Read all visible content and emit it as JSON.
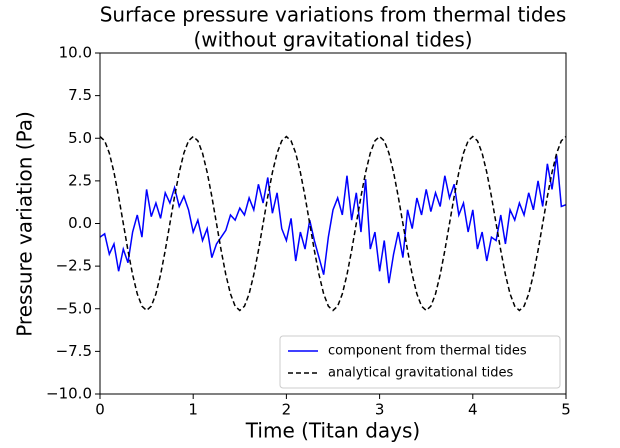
{
  "chart_data": {
    "type": "line",
    "title": [
      "Surface pressure variations from thermal tides",
      "(without gravitational tides)"
    ],
    "xlabel": "Time (Titan days)",
    "ylabel": "Pressure variation (Pa)",
    "xlim": [
      0,
      5
    ],
    "ylim": [
      -10,
      10
    ],
    "xticks": [
      0,
      1,
      2,
      3,
      4,
      5
    ],
    "yticks": [
      {
        "value": -10,
        "label": "−10.0"
      },
      {
        "value": -7.5,
        "label": "−7.5"
      },
      {
        "value": -5,
        "label": "−5.0"
      },
      {
        "value": -2.5,
        "label": "−2.5"
      },
      {
        "value": 0,
        "label": "0.0"
      },
      {
        "value": 2.5,
        "label": "2.5"
      },
      {
        "value": 5,
        "label": "5.0"
      },
      {
        "value": 7.5,
        "label": "7.5"
      },
      {
        "value": 10,
        "label": "10.0"
      }
    ],
    "grid": false,
    "legend": "lower right",
    "x": [
      0,
      0.05,
      0.1,
      0.15,
      0.2,
      0.25,
      0.3,
      0.35,
      0.4,
      0.45,
      0.5,
      0.55,
      0.6,
      0.65,
      0.7,
      0.75,
      0.8,
      0.85,
      0.9,
      0.95,
      1,
      1.05,
      1.1,
      1.15,
      1.2,
      1.25,
      1.3,
      1.35,
      1.4,
      1.45,
      1.5,
      1.55,
      1.6,
      1.65,
      1.7,
      1.75,
      1.8,
      1.85,
      1.9,
      1.95,
      2,
      2.05,
      2.1,
      2.15,
      2.2,
      2.25,
      2.3,
      2.35,
      2.4,
      2.45,
      2.5,
      2.55,
      2.6,
      2.65,
      2.7,
      2.75,
      2.8,
      2.85,
      2.9,
      2.95,
      3,
      3.05,
      3.1,
      3.15,
      3.2,
      3.25,
      3.3,
      3.35,
      3.4,
      3.45,
      3.5,
      3.55,
      3.6,
      3.65,
      3.7,
      3.75,
      3.8,
      3.85,
      3.9,
      3.95,
      4,
      4.05,
      4.1,
      4.15,
      4.2,
      4.25,
      4.3,
      4.35,
      4.4,
      4.45,
      4.5,
      4.55,
      4.6,
      4.65,
      4.7,
      4.75,
      4.8,
      4.85,
      4.9,
      4.95,
      5
    ],
    "series": [
      {
        "name": "component from thermal tides",
        "color": "#0000ff",
        "linestyle": "solid",
        "values": [
          -0.8,
          -0.6,
          -1.8,
          -1.2,
          -2.8,
          -1.5,
          -2.3,
          -0.5,
          0.5,
          -0.8,
          2.0,
          0.4,
          1.2,
          0.3,
          1.8,
          1.2,
          2.1,
          1.0,
          1.6,
          0.8,
          -0.5,
          0.2,
          -1.0,
          -0.3,
          -2.0,
          -1.2,
          -0.8,
          -0.4,
          0.5,
          0.2,
          0.9,
          0.5,
          1.5,
          0.8,
          2.3,
          1.2,
          2.7,
          0.6,
          1.8,
          -0.3,
          -1.0,
          0.3,
          -2.2,
          -0.5,
          -1.5,
          0.2,
          -1.0,
          -2.0,
          -3.0,
          -0.8,
          0.8,
          1.5,
          0.5,
          2.8,
          0.2,
          1.8,
          -0.5,
          2.6,
          -1.5,
          -0.5,
          -2.8,
          -1.0,
          -3.5,
          -1.8,
          -0.5,
          -2.0,
          0.8,
          -0.3,
          1.5,
          0.5,
          2.0,
          0.7,
          1.8,
          1.0,
          2.8,
          1.5,
          2.3,
          0.5,
          1.2,
          -0.5,
          0.8,
          -1.5,
          -0.5,
          -2.2,
          -0.8,
          -1.0,
          0.5,
          -1.2,
          0.8,
          0.2,
          1.2,
          0.5,
          1.8,
          0.8,
          2.5,
          1.0,
          3.5,
          2.0,
          4.0,
          1.0,
          1.1
        ]
      },
      {
        "name": "analytical gravitational tides",
        "color": "#000000",
        "linestyle": "dashed",
        "values": [
          5.1,
          4.85,
          4.13,
          3.0,
          1.58,
          0,
          -1.58,
          -3.0,
          -4.13,
          -4.85,
          -5.1,
          -4.85,
          -4.13,
          -3.0,
          -1.58,
          0,
          1.58,
          3.0,
          4.13,
          4.85,
          5.1,
          4.85,
          4.13,
          3.0,
          1.58,
          0,
          -1.58,
          -3.0,
          -4.13,
          -4.85,
          -5.1,
          -4.85,
          -4.13,
          -3.0,
          -1.58,
          0,
          1.58,
          3.0,
          4.13,
          4.85,
          5.1,
          4.85,
          4.13,
          3.0,
          1.58,
          0,
          -1.58,
          -3.0,
          -4.13,
          -4.85,
          -5.1,
          -4.85,
          -4.13,
          -3.0,
          -1.58,
          0,
          1.58,
          3.0,
          4.13,
          4.85,
          5.1,
          4.85,
          4.13,
          3.0,
          1.58,
          0,
          -1.58,
          -3.0,
          -4.13,
          -4.85,
          -5.1,
          -4.85,
          -4.13,
          -3.0,
          -1.58,
          0,
          1.58,
          3.0,
          4.13,
          4.85,
          5.1,
          4.85,
          4.13,
          3.0,
          1.58,
          0,
          -1.58,
          -3.0,
          -4.13,
          -4.85,
          -5.1,
          -4.85,
          -4.13,
          -3.0,
          -1.58,
          0,
          1.58,
          3.0,
          4.13,
          4.85,
          5.1
        ]
      }
    ]
  }
}
